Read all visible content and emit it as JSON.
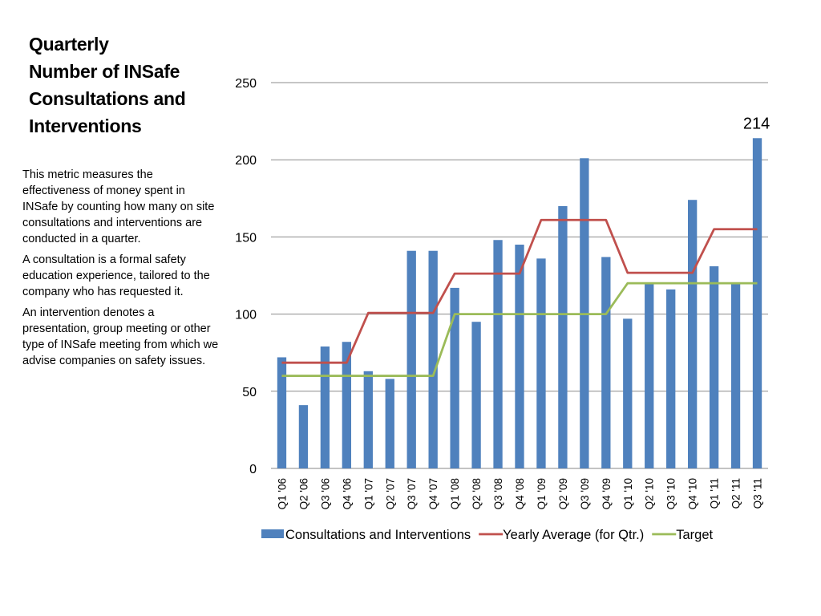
{
  "slide": {
    "title_lines": [
      "Quarterly",
      "Number of INSafe",
      "Consultations and",
      "Interventions"
    ],
    "description": [
      "This  metric measures  the effectiveness of money spent in INSafe by counting how many on site consultations  and interventions are conducted in a quarter.",
      "A consultation is a formal safety education experience, tailored to the company who has requested it.",
      "An intervention denotes a presentation, group meeting or other type of INSafe meeting from which we advise companies on safety issues."
    ]
  },
  "chart_data": {
    "type": "bar",
    "categories": [
      "Q1 '06",
      "Q2 '06",
      "Q3 '06",
      "Q4 '06",
      "Q1 '07",
      "Q2 '07",
      "Q3 '07",
      "Q4 '07",
      "Q1 '08",
      "Q2 '08",
      "Q3 '08",
      "Q4 '08",
      "Q1 '09",
      "Q2 '09",
      "Q3 '09",
      "Q4 '09",
      "Q1 '10",
      "Q2 '10",
      "Q3 '10",
      "Q4 '10",
      "Q1 '11",
      "Q2 '11",
      "Q3 '11"
    ],
    "series": [
      {
        "name": "Consultations and Interventions",
        "type": "bar",
        "color": "#4f81bd",
        "values": [
          72,
          41,
          79,
          82,
          63,
          58,
          141,
          141,
          117,
          95,
          148,
          145,
          136,
          170,
          201,
          137,
          97,
          120,
          116,
          174,
          131,
          120,
          214
        ]
      },
      {
        "name": "Yearly Average (for Qtr.)",
        "type": "line",
        "color": "#c0504d",
        "values": [
          68.5,
          68.5,
          68.5,
          68.5,
          100.75,
          100.75,
          100.75,
          100.75,
          126.25,
          126.25,
          126.25,
          126.25,
          161,
          161,
          161,
          161,
          126.75,
          126.75,
          126.75,
          126.75,
          155,
          155,
          155
        ]
      },
      {
        "name": "Target",
        "type": "line",
        "color": "#9bbb59",
        "values": [
          60,
          60,
          60,
          60,
          60,
          60,
          60,
          60,
          100,
          100,
          100,
          100,
          100,
          100,
          100,
          100,
          120,
          120,
          120,
          120,
          120,
          120,
          120
        ]
      }
    ],
    "ylim": [
      0,
      250
    ],
    "yticks": [
      0,
      50,
      100,
      150,
      200,
      250
    ],
    "grid": true,
    "legend": "bottom",
    "annotations": [
      {
        "category": "Q3 '11",
        "text": "214"
      }
    ]
  }
}
